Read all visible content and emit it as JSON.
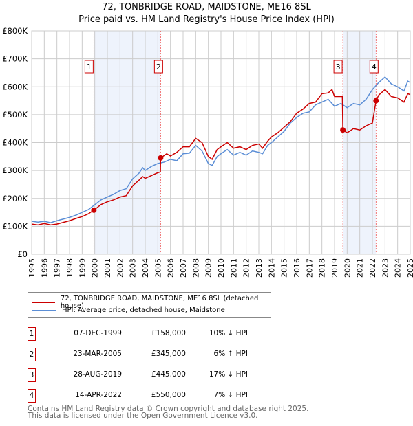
{
  "chart_data": {
    "type": "line",
    "title": "72, TONBRIDGE ROAD, MAIDSTONE, ME16 8SL",
    "subtitle": "Price paid vs. HM Land Registry's House Price Index (HPI)",
    "xlim": [
      1995,
      2025
    ],
    "ylim": [
      0,
      800000
    ],
    "yticks": [
      {
        "v": 0,
        "label": "£0"
      },
      {
        "v": 100000,
        "label": "£100K"
      },
      {
        "v": 200000,
        "label": "£200K"
      },
      {
        "v": 300000,
        "label": "£300K"
      },
      {
        "v": 400000,
        "label": "£400K"
      },
      {
        "v": 500000,
        "label": "£500K"
      },
      {
        "v": 600000,
        "label": "£600K"
      },
      {
        "v": 700000,
        "label": "£700K"
      },
      {
        "v": 800000,
        "label": "£800K"
      }
    ],
    "xticks": [
      "1995",
      "1996",
      "1997",
      "1998",
      "1999",
      "2000",
      "2001",
      "2002",
      "2003",
      "2004",
      "2005",
      "2006",
      "2007",
      "2008",
      "2009",
      "2010",
      "2011",
      "2012",
      "2013",
      "2014",
      "2015",
      "2016",
      "2017",
      "2018",
      "2019",
      "2020",
      "2021",
      "2022",
      "2023",
      "2024",
      "2025"
    ],
    "grid": true,
    "shaded_ranges": [
      [
        1999.93,
        2005.22
      ],
      [
        2019.66,
        2022.29
      ]
    ],
    "series": [
      {
        "name": "72, TONBRIDGE ROAD, MAIDSTONE, ME16 8SL (detached house)",
        "color": "#cc0000",
        "x": [
          1995,
          1995.5,
          1996,
          1996.5,
          1997,
          1998,
          1998.5,
          1999,
          1999.5,
          1999.93,
          2000.5,
          2001,
          2001.5,
          2002,
          2002.5,
          2003,
          2003.5,
          2003.8,
          2004,
          2004.5,
          2005,
          2005.2,
          2005.22,
          2005.7,
          2006,
          2006.5,
          2007,
          2007.5,
          2008,
          2008.5,
          2009,
          2009.3,
          2009.7,
          2010,
          2010.5,
          2011,
          2011.5,
          2012,
          2012.5,
          2013,
          2013.3,
          2013.7,
          2014,
          2014.5,
          2015,
          2015.5,
          2016,
          2016.5,
          2017,
          2017.5,
          2018,
          2018.5,
          2018.8,
          2019,
          2019.5,
          2019.62,
          2019.66,
          2020,
          2020.5,
          2021,
          2021.5,
          2022,
          2022.29,
          2022.5,
          2023,
          2023.5,
          2024,
          2024.5,
          2024.8,
          2025
        ],
        "y": [
          108,
          105,
          110,
          105,
          108,
          120,
          128,
          135,
          145,
          158,
          178,
          188,
          195,
          205,
          210,
          245,
          265,
          278,
          272,
          282,
          292,
          295,
          345,
          360,
          352,
          365,
          385,
          385,
          415,
          400,
          350,
          340,
          375,
          385,
          400,
          380,
          385,
          375,
          390,
          395,
          380,
          405,
          420,
          435,
          455,
          475,
          505,
          520,
          540,
          545,
          575,
          578,
          590,
          565,
          565,
          565,
          445,
          435,
          450,
          445,
          460,
          470,
          550,
          570,
          590,
          565,
          560,
          545,
          575,
          572
        ]
      },
      {
        "name": "HPI: Average price, detached house, Maidstone",
        "color": "#5b8ed6",
        "x": [
          1995,
          1995.5,
          1996,
          1996.5,
          1997,
          1998,
          1998.5,
          1999,
          1999.5,
          1999.93,
          2000.5,
          2001,
          2001.5,
          2002,
          2002.5,
          2003,
          2003.5,
          2003.8,
          2004,
          2004.5,
          2005,
          2005.5,
          2006,
          2006.5,
          2007,
          2007.5,
          2008,
          2008.5,
          2009,
          2009.3,
          2009.7,
          2010,
          2010.5,
          2011,
          2011.5,
          2012,
          2012.5,
          2013,
          2013.3,
          2013.7,
          2014,
          2014.5,
          2015,
          2015.5,
          2016,
          2016.5,
          2017,
          2017.5,
          2018,
          2018.5,
          2019,
          2019.5,
          2020,
          2020.5,
          2021,
          2021.5,
          2022,
          2022.5,
          2023,
          2023.5,
          2024,
          2024.5,
          2024.8,
          2025
        ],
        "y": [
          118,
          115,
          118,
          113,
          120,
          132,
          140,
          150,
          160,
          175,
          195,
          205,
          215,
          228,
          235,
          270,
          290,
          310,
          300,
          315,
          325,
          330,
          340,
          335,
          360,
          362,
          390,
          370,
          325,
          318,
          350,
          360,
          375,
          355,
          365,
          355,
          370,
          365,
          360,
          390,
          400,
          420,
          440,
          470,
          490,
          505,
          510,
          535,
          545,
          555,
          530,
          540,
          525,
          540,
          535,
          555,
          590,
          615,
          635,
          610,
          600,
          585,
          620,
          615
        ]
      }
    ],
    "y_units": "thousands GBP",
    "sales": [
      {
        "num": "1",
        "x": 1999.93,
        "y": 158,
        "date": "07-DEC-1999",
        "price": "£158,000",
        "hpi": "10% ↓ HPI"
      },
      {
        "num": "2",
        "x": 2005.22,
        "y": 345,
        "date": "23-MAR-2005",
        "price": "£345,000",
        "hpi": "6% ↑ HPI"
      },
      {
        "num": "3",
        "x": 2019.66,
        "y": 445,
        "date": "28-AUG-2019",
        "price": "£445,000",
        "hpi": "17% ↓ HPI"
      },
      {
        "num": "4",
        "x": 2022.29,
        "y": 550,
        "date": "14-APR-2022",
        "price": "£550,000",
        "hpi": "7% ↓ HPI"
      }
    ],
    "legend_position": "bottom"
  },
  "footer": {
    "line1": "Contains HM Land Registry data © Crown copyright and database right 2025.",
    "line2": "This data is licensed under the Open Government Licence v3.0."
  }
}
